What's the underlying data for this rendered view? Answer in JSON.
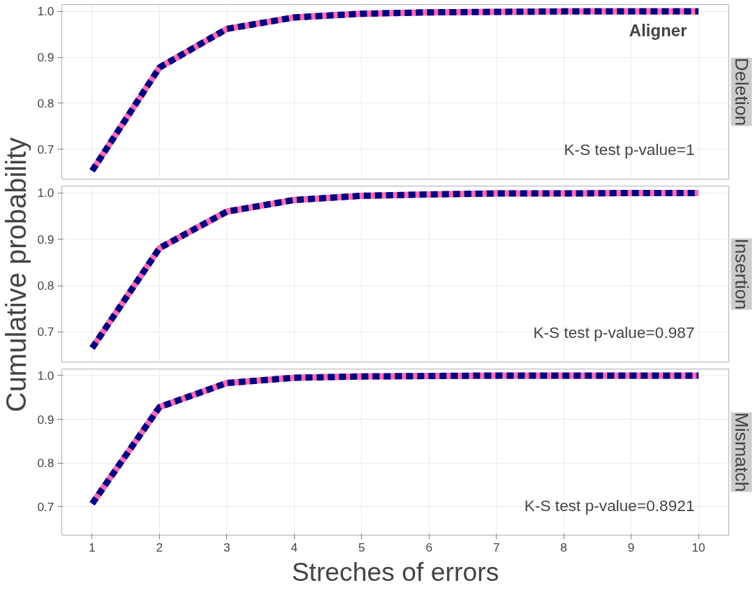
{
  "chart_data": [
    {
      "type": "line",
      "title": "Deletion",
      "x": [
        1,
        2,
        3,
        4,
        5,
        6,
        7,
        8,
        9,
        10
      ],
      "xlim": [
        0.55,
        10.45
      ],
      "xticks": [
        1,
        2,
        3,
        4,
        5,
        6,
        7,
        8,
        9,
        10
      ],
      "ylim": [
        0.635,
        1.015
      ],
      "yticks": [
        {
          "value": 0.7,
          "label": "0.7"
        },
        {
          "value": 0.8,
          "label": "0.8"
        },
        {
          "value": 0.9,
          "label": "0.9"
        },
        {
          "value": 1.0,
          "label": "1.0"
        }
      ],
      "tick_labels": "y",
      "grid": true,
      "legend_title": "Aligner",
      "annotations": [
        "K-S test p-value=1"
      ],
      "series": [
        {
          "color": "#ff69b4",
          "line_style": "solid",
          "values": [
            0.653,
            0.878,
            0.962,
            0.987,
            0.995,
            0.998,
            0.999,
            1.0,
            1.0,
            1.0
          ]
        },
        {
          "color": "#000080",
          "line_style": "dashed",
          "values": [
            0.653,
            0.878,
            0.962,
            0.987,
            0.995,
            0.998,
            0.999,
            1.0,
            1.0,
            1.0
          ]
        }
      ]
    },
    {
      "type": "line",
      "title": "Insertion",
      "ylabel": "Cumulative probability",
      "x": [
        1,
        2,
        3,
        4,
        5,
        6,
        7,
        8,
        9,
        10
      ],
      "xlim": [
        0.55,
        10.45
      ],
      "xticks": [
        1,
        2,
        3,
        4,
        5,
        6,
        7,
        8,
        9,
        10
      ],
      "ylim": [
        0.635,
        1.015
      ],
      "yticks": [
        {
          "value": 0.7,
          "label": "0.7"
        },
        {
          "value": 0.8,
          "label": "0.8"
        },
        {
          "value": 0.9,
          "label": "0.9"
        },
        {
          "value": 1.0,
          "label": "1.0"
        }
      ],
      "tick_labels": "y",
      "grid": true,
      "annotations": [
        "K-S test p-value=0.987"
      ],
      "series": [
        {
          "color": "#ff69b4",
          "line_style": "solid",
          "values": [
            0.665,
            0.881,
            0.96,
            0.985,
            0.994,
            0.997,
            0.999,
            0.999,
            1.0,
            1.0
          ]
        },
        {
          "color": "#000080",
          "line_style": "dashed",
          "values": [
            0.665,
            0.881,
            0.96,
            0.985,
            0.994,
            0.997,
            0.999,
            0.999,
            1.0,
            1.0
          ]
        }
      ]
    },
    {
      "type": "line",
      "title": "Mismatch",
      "xlabel": "Streches of errors",
      "x": [
        1,
        2,
        3,
        4,
        5,
        6,
        7,
        8,
        9,
        10
      ],
      "xlim": [
        0.55,
        10.45
      ],
      "xticks": [
        1,
        2,
        3,
        4,
        5,
        6,
        7,
        8,
        9,
        10
      ],
      "ylim": [
        0.635,
        1.015
      ],
      "yticks": [
        {
          "value": 0.7,
          "label": "0.7"
        },
        {
          "value": 0.8,
          "label": "0.8"
        },
        {
          "value": 0.9,
          "label": "0.9"
        },
        {
          "value": 1.0,
          "label": "1.0"
        }
      ],
      "grid": true,
      "annotations": [
        "K-S test p-value=0.8921"
      ],
      "series": [
        {
          "color": "#ff69b4",
          "line_style": "solid",
          "values": [
            0.707,
            0.928,
            0.983,
            0.995,
            0.998,
            0.999,
            1.0,
            1.0,
            1.0,
            1.0
          ]
        },
        {
          "color": "#000080",
          "line_style": "dashed",
          "values": [
            0.707,
            0.928,
            0.983,
            0.995,
            0.998,
            0.999,
            1.0,
            1.0,
            1.0,
            1.0
          ]
        }
      ]
    }
  ]
}
